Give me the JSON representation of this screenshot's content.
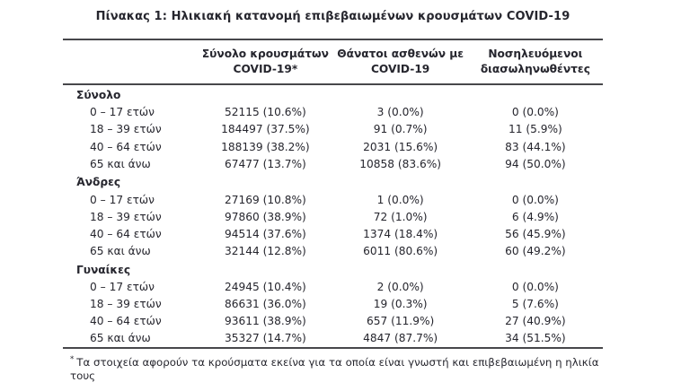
{
  "title": "Πίνακας 1: Ηλικιακή κατανομή επιβεβαιωμένων κρουσμάτων COVID-19",
  "table": {
    "headers": [
      {
        "line1": "Σύνολο κρουσμάτων",
        "line2": "COVID-19*"
      },
      {
        "line1": "Θάνατοι ασθενών με",
        "line2": "COVID-19"
      },
      {
        "line1": "Νοσηλευόμενοι",
        "line2": "διασωληνωθέντες"
      }
    ],
    "sections": [
      {
        "label": "Σύνολο",
        "rows": [
          {
            "age": "0 – 17 ετών",
            "cases": "52115 (10.6%)",
            "deaths": "3 (0.0%)",
            "intubated": "0 (0.0%)"
          },
          {
            "age": "18 – 39 ετών",
            "cases": "184497 (37.5%)",
            "deaths": "91 (0.7%)",
            "intubated": "11 (5.9%)"
          },
          {
            "age": "40 – 64 ετών",
            "cases": "188139 (38.2%)",
            "deaths": "2031 (15.6%)",
            "intubated": "83 (44.1%)"
          },
          {
            "age": "65 και άνω",
            "cases": "67477 (13.7%)",
            "deaths": "10858 (83.6%)",
            "intubated": "94 (50.0%)"
          }
        ]
      },
      {
        "label": "Άνδρες",
        "rows": [
          {
            "age": "0 – 17 ετών",
            "cases": "27169 (10.8%)",
            "deaths": "1 (0.0%)",
            "intubated": "0 (0.0%)"
          },
          {
            "age": "18 – 39 ετών",
            "cases": "97860 (38.9%)",
            "deaths": "72 (1.0%)",
            "intubated": "6 (4.9%)"
          },
          {
            "age": "40 – 64 ετών",
            "cases": "94514 (37.6%)",
            "deaths": "1374 (18.4%)",
            "intubated": "56 (45.9%)"
          },
          {
            "age": "65 και άνω",
            "cases": "32144 (12.8%)",
            "deaths": "6011 (80.6%)",
            "intubated": "60 (49.2%)"
          }
        ]
      },
      {
        "label": "Γυναίκες",
        "rows": [
          {
            "age": "0 – 17 ετών",
            "cases": "24945 (10.4%)",
            "deaths": "2 (0.0%)",
            "intubated": "0 (0.0%)"
          },
          {
            "age": "18 – 39 ετών",
            "cases": "86631 (36.0%)",
            "deaths": "19 (0.3%)",
            "intubated": "5 (7.6%)"
          },
          {
            "age": "40 – 64 ετών",
            "cases": "93611 (38.9%)",
            "deaths": "657 (11.9%)",
            "intubated": "27 (40.9%)"
          },
          {
            "age": "65 και άνω",
            "cases": "35327 (14.7%)",
            "deaths": "4847 (87.7%)",
            "intubated": "34 (51.5%)"
          }
        ]
      }
    ]
  },
  "footnote": {
    "marker": "*",
    "text": "Τα στοιχεία αφορούν τα κρούσματα εκείνα για τα οποία είναι γνωστή και επιβεβαιωμένη η ηλικία τους"
  }
}
